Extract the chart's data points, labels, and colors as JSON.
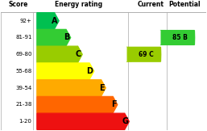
{
  "title_score": "Score",
  "title_energy": "Energy rating",
  "title_current": "Current",
  "title_potential": "Potential",
  "bands": [
    {
      "label": "A",
      "score": "92+",
      "color": "#00c050"
    },
    {
      "label": "B",
      "score": "81-91",
      "color": "#33cc33"
    },
    {
      "label": "C",
      "score": "69-80",
      "color": "#99cc00"
    },
    {
      "label": "D",
      "score": "55-68",
      "color": "#ffff00"
    },
    {
      "label": "E",
      "score": "39-54",
      "color": "#ffaa00"
    },
    {
      "label": "F",
      "score": "21-38",
      "color": "#ff6600"
    },
    {
      "label": "G",
      "score": "1-20",
      "color": "#ee1111"
    }
  ],
  "current": {
    "label": "69 C",
    "band_idx": 2,
    "color": "#99cc00"
  },
  "potential": {
    "label": "85 B",
    "band_idx": 1,
    "color": "#33cc33"
  },
  "bg_color": "#ffffff"
}
